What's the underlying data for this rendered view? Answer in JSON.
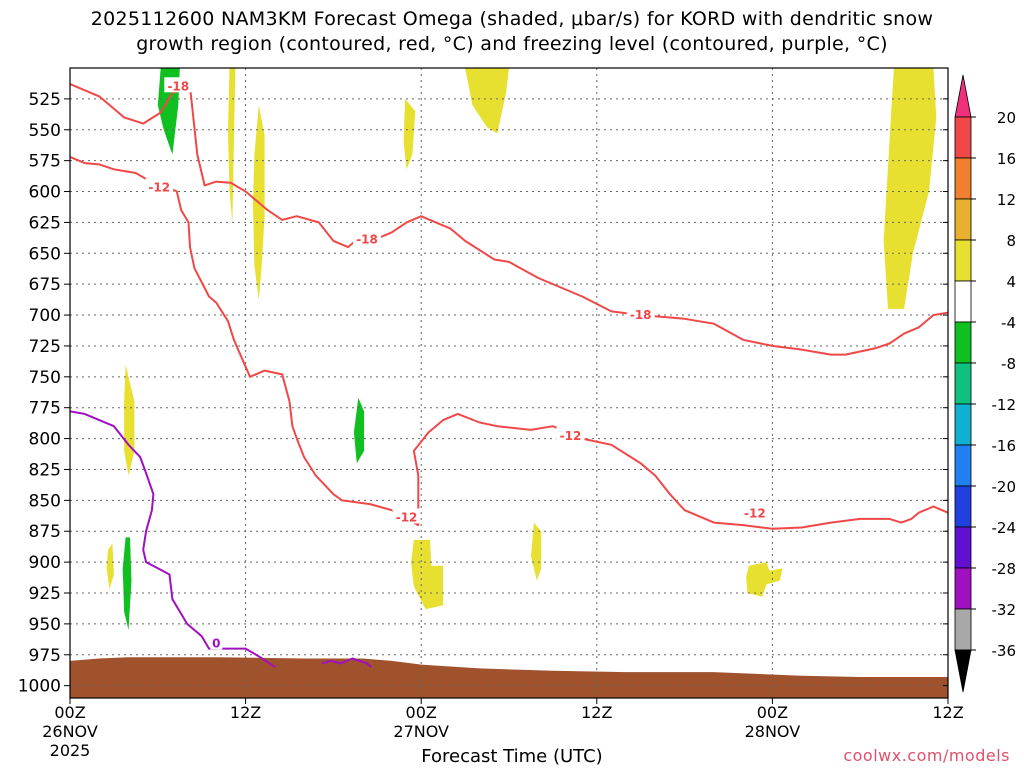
{
  "title_line1": "2025112600 NAM3KM Forecast Omega (shaded, μbar/s) for KORD with dendritic snow",
  "title_line2": "growth region (contoured, red, °C) and freezing level (contoured, purple, °C)",
  "xlabel": "Forecast Time (UTC)",
  "credit": "coolwx.com/models",
  "chart_data": {
    "type": "heatmap",
    "title": "2025112600 NAM3KM Forecast Omega (shaded, μbar/s) for KORD with dendritic snow growth region (contoured, red, °C) and freezing level (contoured, purple, °C)",
    "xlabel": "Forecast Time (UTC)",
    "ylabel": "",
    "x_unit": "forecast hour",
    "xlim": [
      0,
      60
    ],
    "ylim": [
      1010,
      500
    ],
    "y_reversed": true,
    "x_ticks": [
      {
        "x": 0,
        "l1": "00Z",
        "l2": "26NOV",
        "l3": "2025"
      },
      {
        "x": 12,
        "l1": "12Z",
        "l2": "",
        "l3": ""
      },
      {
        "x": 24,
        "l1": "00Z",
        "l2": "27NOV",
        "l3": ""
      },
      {
        "x": 36,
        "l1": "12Z",
        "l2": "",
        "l3": ""
      },
      {
        "x": 48,
        "l1": "00Z",
        "l2": "28NOV",
        "l3": ""
      },
      {
        "x": 60,
        "l1": "12Z",
        "l2": "",
        "l3": ""
      }
    ],
    "y_ticks": [
      525,
      550,
      575,
      600,
      625,
      650,
      675,
      700,
      725,
      750,
      775,
      800,
      825,
      850,
      875,
      900,
      925,
      950,
      975,
      1000
    ],
    "grid": true,
    "colorbar": {
      "ticks": [
        "20",
        "16",
        "12",
        "8",
        "4",
        "-4",
        "-8",
        "-12",
        "-16",
        "-20",
        "-24",
        "-28",
        "-32",
        "-36"
      ],
      "colors": [
        "#f0307a",
        "#f04848",
        "#f08030",
        "#e8b030",
        "#e8e030",
        "#ffffff",
        "#10c020",
        "#10c080",
        "#10b0d0",
        "#2080f0",
        "#2040e0",
        "#6010d0",
        "#a010c0",
        "#a8a8a8",
        "#000000"
      ]
    },
    "shaded_regions": [
      {
        "name": "omega",
        "color": "#10c020",
        "points": [
          [
            6.2,
            500
          ],
          [
            7.5,
            500
          ],
          [
            7.4,
            530
          ],
          [
            7.0,
            570
          ],
          [
            6.4,
            550
          ],
          [
            6.0,
            530
          ]
        ]
      },
      {
        "name": "omega",
        "color": "#e8e030",
        "points": [
          [
            10.9,
            500
          ],
          [
            11.3,
            500
          ],
          [
            11.2,
            560
          ],
          [
            11.1,
            625
          ],
          [
            10.9,
            600
          ],
          [
            10.8,
            550
          ]
        ]
      },
      {
        "name": "omega",
        "color": "#e8e030",
        "points": [
          [
            12.9,
            530
          ],
          [
            13.3,
            555
          ],
          [
            13.3,
            620
          ],
          [
            13.1,
            660
          ],
          [
            12.9,
            688
          ],
          [
            12.6,
            660
          ],
          [
            12.5,
            610
          ],
          [
            12.6,
            570
          ]
        ]
      },
      {
        "name": "omega",
        "color": "#e8e030",
        "points": [
          [
            22.9,
            525
          ],
          [
            23.6,
            535
          ],
          [
            23.4,
            570
          ],
          [
            23.0,
            582
          ],
          [
            22.8,
            560
          ]
        ]
      },
      {
        "name": "omega",
        "color": "#e8e030",
        "points": [
          [
            27.0,
            500
          ],
          [
            30.0,
            500
          ],
          [
            29.8,
            520
          ],
          [
            29.2,
            553
          ],
          [
            28.5,
            548
          ],
          [
            27.5,
            530
          ]
        ]
      },
      {
        "name": "omega",
        "color": "#e8e030",
        "points": [
          [
            56.3,
            500
          ],
          [
            59.0,
            500
          ],
          [
            59.2,
            540
          ],
          [
            58.7,
            600
          ],
          [
            57.6,
            650
          ],
          [
            57.0,
            695
          ],
          [
            55.9,
            695
          ],
          [
            55.6,
            640
          ],
          [
            55.9,
            580
          ],
          [
            56.1,
            540
          ]
        ]
      },
      {
        "name": "omega",
        "color": "#e8e030",
        "points": [
          [
            3.8,
            740
          ],
          [
            4.4,
            770
          ],
          [
            4.4,
            810
          ],
          [
            4.0,
            830
          ],
          [
            3.7,
            810
          ],
          [
            3.7,
            770
          ]
        ]
      },
      {
        "name": "omega",
        "color": "#10c020",
        "points": [
          [
            19.7,
            767
          ],
          [
            20.1,
            778
          ],
          [
            20.1,
            810
          ],
          [
            19.6,
            820
          ],
          [
            19.4,
            795
          ]
        ]
      },
      {
        "name": "omega",
        "color": "#e8e030",
        "points": [
          [
            2.6,
            890
          ],
          [
            2.9,
            885
          ],
          [
            3.0,
            910
          ],
          [
            2.7,
            922
          ],
          [
            2.5,
            905
          ]
        ]
      },
      {
        "name": "omega",
        "color": "#10c020",
        "points": [
          [
            3.8,
            880
          ],
          [
            4.1,
            880
          ],
          [
            4.2,
            915
          ],
          [
            4.0,
            955
          ],
          [
            3.7,
            940
          ],
          [
            3.6,
            905
          ]
        ]
      },
      {
        "name": "omega",
        "color": "#e8e030",
        "points": [
          [
            23.5,
            882
          ],
          [
            24.6,
            882
          ],
          [
            24.7,
            903
          ],
          [
            25.5,
            903
          ],
          [
            25.5,
            935
          ],
          [
            24.3,
            938
          ],
          [
            23.5,
            920
          ],
          [
            23.3,
            900
          ]
        ]
      },
      {
        "name": "omega",
        "color": "#e8e030",
        "points": [
          [
            31.7,
            868
          ],
          [
            32.2,
            875
          ],
          [
            32.2,
            905
          ],
          [
            31.9,
            915
          ],
          [
            31.5,
            895
          ]
        ]
      },
      {
        "name": "omega",
        "color": "#e8e030",
        "points": [
          [
            46.4,
            903
          ],
          [
            47.6,
            900
          ],
          [
            47.8,
            907
          ],
          [
            48.7,
            905
          ],
          [
            48.5,
            915
          ],
          [
            47.6,
            918
          ],
          [
            47.3,
            928
          ],
          [
            46.3,
            925
          ],
          [
            46.2,
            912
          ]
        ]
      }
    ],
    "contours": [
      {
        "name": "dendritic -18",
        "color": "#f04848",
        "label": "-18",
        "label_at": [
          7.4,
          514
        ],
        "points": [
          [
            0,
            513
          ],
          [
            2,
            523
          ],
          [
            3.7,
            540
          ],
          [
            5,
            545
          ],
          [
            6.2,
            536
          ],
          [
            7,
            520
          ],
          [
            8.2,
            515
          ],
          [
            8.7,
            570
          ],
          [
            9.2,
            595
          ],
          [
            10,
            592
          ],
          [
            11,
            593
          ],
          [
            12,
            600
          ],
          [
            13.5,
            615
          ],
          [
            14.5,
            623
          ],
          [
            15.5,
            620
          ],
          [
            17,
            625
          ],
          [
            18,
            640
          ],
          [
            19,
            645
          ],
          [
            19.5,
            640
          ],
          [
            21,
            638
          ],
          [
            22,
            633
          ],
          [
            23,
            625
          ],
          [
            24,
            620
          ],
          [
            25,
            625
          ],
          [
            26,
            630
          ],
          [
            27,
            640
          ],
          [
            29,
            655
          ],
          [
            30,
            657
          ],
          [
            32,
            670
          ],
          [
            35,
            685
          ],
          [
            37,
            697
          ],
          [
            39,
            700
          ],
          [
            41,
            702
          ],
          [
            42,
            703
          ],
          [
            44,
            707
          ],
          [
            46,
            720
          ],
          [
            48,
            725
          ],
          [
            50,
            728
          ],
          [
            52,
            732
          ],
          [
            53,
            732
          ],
          [
            55,
            727
          ],
          [
            56,
            723
          ],
          [
            57,
            715
          ],
          [
            58,
            710
          ],
          [
            59,
            700
          ],
          [
            60,
            698
          ]
        ]
      },
      {
        "name": "dendritic -12",
        "color": "#f04848",
        "label": "-12",
        "label_at": [
          6.1,
          595
        ],
        "points": [
          [
            0,
            572
          ],
          [
            1,
            577
          ],
          [
            2,
            578
          ],
          [
            3,
            582
          ],
          [
            4.5,
            585
          ],
          [
            5.5,
            592
          ],
          [
            6.5,
            595
          ],
          [
            7.3,
            600
          ],
          [
            7.6,
            615
          ],
          [
            8.1,
            625
          ],
          [
            8.2,
            645
          ],
          [
            8.5,
            662
          ],
          [
            9.5,
            685
          ],
          [
            10,
            690
          ],
          [
            10.8,
            705
          ],
          [
            11.2,
            720
          ],
          [
            12.3,
            750
          ],
          [
            13.3,
            745
          ],
          [
            14.5,
            748
          ],
          [
            15,
            770
          ],
          [
            15.2,
            790
          ],
          [
            15.5,
            800
          ],
          [
            16,
            815
          ],
          [
            16.8,
            830
          ],
          [
            18,
            845
          ],
          [
            18.6,
            850
          ],
          [
            20.5,
            853
          ],
          [
            22,
            858
          ],
          [
            23.8,
            870
          ],
          [
            23.8,
            830
          ],
          [
            23.5,
            810
          ],
          [
            24.5,
            795
          ],
          [
            25.5,
            785
          ],
          [
            26.5,
            780
          ],
          [
            28,
            787
          ],
          [
            29.2,
            790
          ],
          [
            31.5,
            793
          ],
          [
            33,
            790
          ],
          [
            35,
            800
          ],
          [
            37,
            805
          ],
          [
            39,
            820
          ],
          [
            40,
            830
          ],
          [
            41,
            845
          ],
          [
            42,
            858
          ],
          [
            44,
            868
          ],
          [
            46,
            870
          ],
          [
            48,
            873
          ],
          [
            50,
            872
          ],
          [
            52,
            868
          ],
          [
            54,
            865
          ],
          [
            56,
            865
          ],
          [
            56.8,
            868
          ],
          [
            57.5,
            865
          ],
          [
            58,
            860
          ],
          [
            59,
            855
          ],
          [
            60,
            860
          ]
        ]
      },
      {
        "name": "freezing level 0",
        "color": "#a010c0",
        "label": "0",
        "label_at": [
          10.0,
          965
        ],
        "points": [
          [
            0,
            778
          ],
          [
            1,
            780
          ],
          [
            2,
            785
          ],
          [
            3,
            790
          ],
          [
            4,
            805
          ],
          [
            4.8,
            815
          ],
          [
            5.2,
            828
          ],
          [
            5.7,
            845
          ],
          [
            5.6,
            858
          ],
          [
            5.2,
            875
          ],
          [
            5,
            890
          ],
          [
            5.2,
            900
          ],
          [
            6,
            905
          ],
          [
            6.8,
            910
          ],
          [
            7,
            930
          ],
          [
            7.5,
            940
          ],
          [
            8,
            950
          ],
          [
            9,
            960
          ],
          [
            9.5,
            970
          ],
          [
            11,
            970
          ],
          [
            12,
            970
          ],
          [
            13,
            977
          ],
          [
            14,
            985
          ]
        ]
      },
      {
        "name": "freezing level 0",
        "color": "#a010c0",
        "label": "",
        "label_at": null,
        "points": [
          [
            17.2,
            982
          ],
          [
            17.8,
            980
          ],
          [
            18.5,
            982
          ],
          [
            19.3,
            978
          ],
          [
            20.3,
            982
          ],
          [
            20.6,
            985
          ]
        ]
      }
    ],
    "terrain": {
      "color": "#a0522d",
      "points": [
        [
          0,
          1010
        ],
        [
          0,
          980
        ],
        [
          2,
          978
        ],
        [
          4,
          977
        ],
        [
          10,
          977
        ],
        [
          16,
          978
        ],
        [
          20,
          978
        ],
        [
          22,
          980
        ],
        [
          24,
          983
        ],
        [
          28,
          986
        ],
        [
          33,
          988
        ],
        [
          38,
          989
        ],
        [
          44,
          989
        ],
        [
          50,
          992
        ],
        [
          54,
          993
        ],
        [
          60,
          993
        ],
        [
          60,
          1010
        ]
      ]
    },
    "contour_labels": [
      {
        "text": "-18",
        "x": 7.4,
        "y": 514
      },
      {
        "text": "-18",
        "x": 20.3,
        "y": 638
      },
      {
        "text": "-18",
        "x": 39.0,
        "y": 699
      },
      {
        "text": "-12",
        "x": 6.1,
        "y": 596
      },
      {
        "text": "-12",
        "x": 34.2,
        "y": 797
      },
      {
        "text": "-12",
        "x": 46.8,
        "y": 860
      },
      {
        "text": "-12",
        "x": 23.0,
        "y": 863
      },
      {
        "text": "0",
        "x": 10.0,
        "y": 965
      }
    ]
  }
}
